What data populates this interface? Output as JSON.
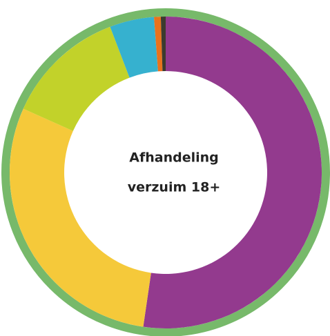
{
  "chart_data": {
    "type": "donut",
    "title": [
      "Afhandeling",
      "verzuim 18+"
    ],
    "values": [
      52.3,
      29.4,
      12.5,
      4.6,
      0.7,
      0.5
    ],
    "colors": [
      "#933a8e",
      "#f5c93a",
      "#c2d22a",
      "#36b1cf",
      "#e9721c",
      "#3b3b2e"
    ],
    "ring_color": "#77b96a"
  }
}
